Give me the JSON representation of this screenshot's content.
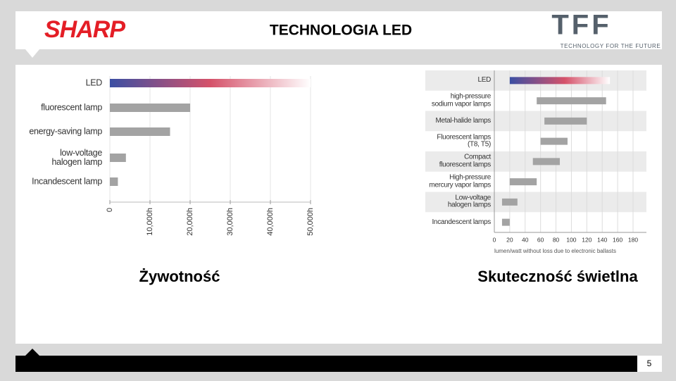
{
  "header": {
    "logo": "SHARP",
    "title": "TECHNOLOGIA LED",
    "partner_logo": "TFF",
    "partner_tagline": "TECHNOLOGY FOR THE FUTURE"
  },
  "captions": [
    "Żywotność",
    "Skuteczność świetlna"
  ],
  "page_number": 5,
  "chart_data": [
    {
      "type": "bar",
      "orientation": "horizontal",
      "categories": [
        "LED",
        "fluorescent lamp",
        "energy-saving lamp",
        "low-voltage\nhalogen lamp",
        "Incandescent lamp"
      ],
      "values": [
        50000,
        20000,
        15000,
        4000,
        2000
      ],
      "color": "#a3a3a3",
      "highlight_colors": [
        "#3b4fa3",
        "#d5526a",
        "#ffffff"
      ],
      "xlim": [
        0,
        50000
      ],
      "xticks": [
        0,
        {
          "value": 10000,
          "label": "10,000h"
        },
        {
          "value": 20000,
          "label": "20,000h"
        },
        {
          "value": 30000,
          "label": "30,000h"
        },
        {
          "value": 40000,
          "label": "40,000h"
        },
        {
          "value": 50000,
          "label": "50,000h"
        }
      ],
      "grid": true
    },
    {
      "type": "range_bar",
      "orientation": "horizontal",
      "categories": [
        "LED",
        "high-pressure\nsodium vapor lamps",
        "Metal-halide lamps",
        "Fluorescent lamps\n(T8, T5)",
        "Compact\nfluorescent lamps",
        "High-pressure\nmercury vapor lamps",
        "Low-voltage\nhalogen lamps",
        "Incandescent lamps"
      ],
      "start": [
        20,
        55,
        65,
        60,
        50,
        20,
        10,
        10
      ],
      "end": [
        150,
        145,
        120,
        95,
        85,
        55,
        30,
        20
      ],
      "color": "#a3a3a3",
      "highlight_colors": [
        "#3b4fa3",
        "#d5526a",
        "#ffffff"
      ],
      "band_color": "#ebebeb",
      "xlabel": "lumen/watt without loss due to electronic ballasts",
      "xlim": [
        0,
        180
      ],
      "xticks": [
        0,
        20,
        40,
        60,
        80,
        100,
        120,
        140,
        160,
        180
      ],
      "grid": true
    }
  ]
}
